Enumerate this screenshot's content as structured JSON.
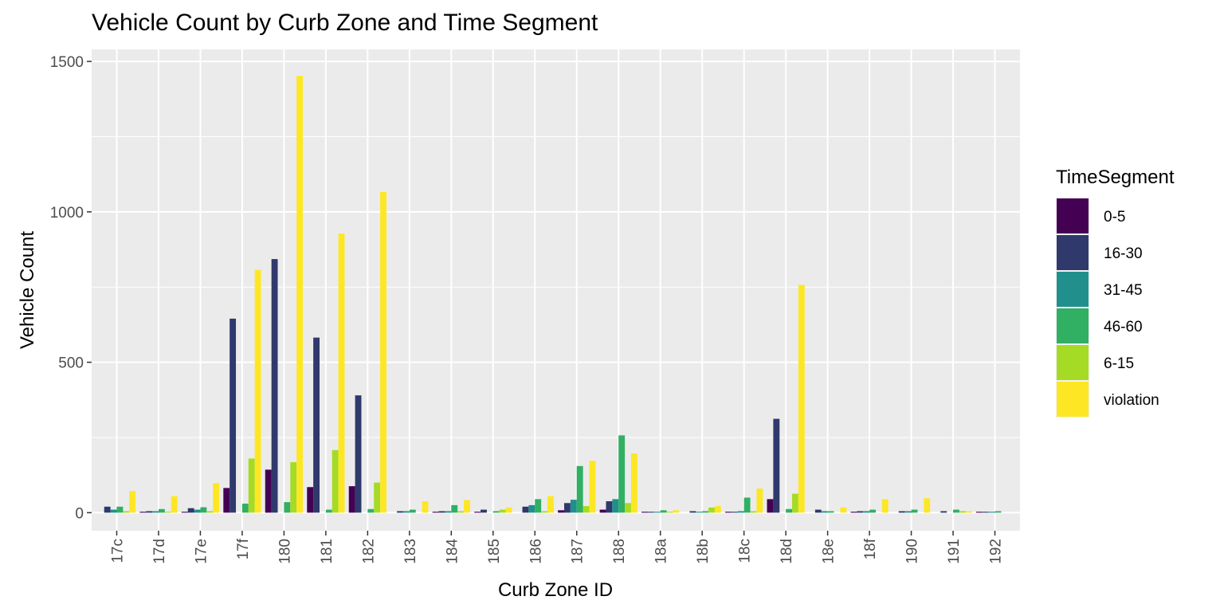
{
  "chart_data": {
    "type": "bar",
    "title": "Vehicle Count by Curb Zone and Time Segment",
    "xlabel": "Curb Zone ID",
    "ylabel": "Vehicle Count",
    "ylim": [
      -60,
      1540
    ],
    "yticks": [
      0,
      500,
      1000,
      1500
    ],
    "grid": true,
    "legend_title": "TimeSegment",
    "legend_position": "right",
    "categories": [
      "17c",
      "17d",
      "17e",
      "17f",
      "180",
      "181",
      "182",
      "183",
      "184",
      "185",
      "186",
      "187",
      "188",
      "18a",
      "18b",
      "18c",
      "18d",
      "18e",
      "18f",
      "190",
      "191",
      "192"
    ],
    "series": [
      {
        "name": "0-5",
        "color": "#440154",
        "values": [
          0,
          3,
          3,
          82,
          143,
          85,
          88,
          0,
          3,
          3,
          0,
          8,
          10,
          3,
          0,
          3,
          45,
          0,
          3,
          0,
          0,
          3
        ]
      },
      {
        "name": "16-30",
        "color": "#30396C",
        "values": [
          20,
          5,
          15,
          645,
          843,
          582,
          390,
          5,
          5,
          10,
          20,
          32,
          38,
          3,
          5,
          3,
          312,
          10,
          5,
          5,
          5,
          3
        ]
      },
      {
        "name": "31-45",
        "color": "#21908C",
        "values": [
          10,
          5,
          10,
          0,
          0,
          0,
          0,
          5,
          5,
          0,
          25,
          43,
          45,
          3,
          3,
          5,
          0,
          5,
          5,
          5,
          0,
          3
        ]
      },
      {
        "name": "46-60",
        "color": "#31AF63",
        "values": [
          20,
          12,
          18,
          30,
          35,
          10,
          12,
          10,
          25,
          5,
          45,
          155,
          257,
          8,
          5,
          50,
          12,
          5,
          10,
          10,
          10,
          5
        ]
      },
      {
        "name": "6-15",
        "color": "#A5DB25",
        "values": [
          5,
          3,
          5,
          180,
          168,
          208,
          100,
          0,
          5,
          10,
          5,
          22,
          32,
          3,
          17,
          5,
          63,
          0,
          0,
          0,
          5,
          0
        ]
      },
      {
        "name": "violation",
        "color": "#FDE725",
        "values": [
          72,
          55,
          98,
          807,
          1452,
          928,
          1066,
          38,
          42,
          17,
          55,
          172,
          197,
          8,
          22,
          80,
          757,
          17,
          45,
          48,
          5,
          0
        ]
      }
    ]
  }
}
